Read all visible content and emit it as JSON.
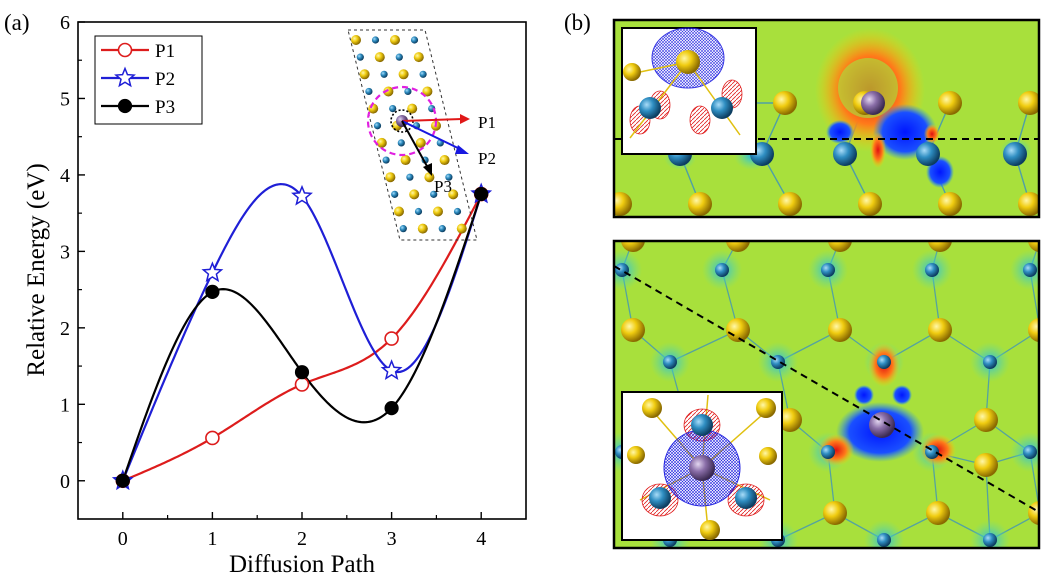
{
  "panels": {
    "a_label": "(a)",
    "b_label": "(b)"
  },
  "chart_data": {
    "type": "line",
    "xlabel": "Diffusion Path",
    "ylabel": "Relative Energy (eV)",
    "xlim": [
      -0.5,
      4.5
    ],
    "ylim": [
      -0.5,
      6
    ],
    "x_ticks": [
      0,
      1,
      2,
      3,
      4
    ],
    "y_ticks": [
      0,
      1,
      2,
      3,
      4,
      5,
      6
    ],
    "grid": false,
    "legend_position": "top-left",
    "series": [
      {
        "name": "P1",
        "color": "#dd1c1c",
        "marker": "open-circle",
        "x": [
          0,
          1,
          2,
          3,
          4
        ],
        "y": [
          0,
          0.56,
          1.26,
          1.86,
          3.75
        ]
      },
      {
        "name": "P2",
        "color": "#1f1fd6",
        "marker": "open-star",
        "x": [
          0,
          1,
          2,
          3,
          4
        ],
        "y": [
          0,
          2.72,
          3.72,
          1.44,
          3.75
        ]
      },
      {
        "name": "P3",
        "color": "#000000",
        "marker": "filled-circle",
        "x": [
          0,
          1,
          2,
          3,
          4
        ],
        "y": [
          0,
          2.47,
          1.42,
          0.95,
          3.75
        ]
      }
    ]
  },
  "inset_a": {
    "arrow_labels": [
      "P1",
      "P2",
      "P3"
    ]
  },
  "colors": {
    "field_bg": "#a8e03c",
    "atom_yellow": "#f0cc10",
    "atom_blue": "#2f8ec2",
    "atom_purple": "#8a6ea8"
  }
}
